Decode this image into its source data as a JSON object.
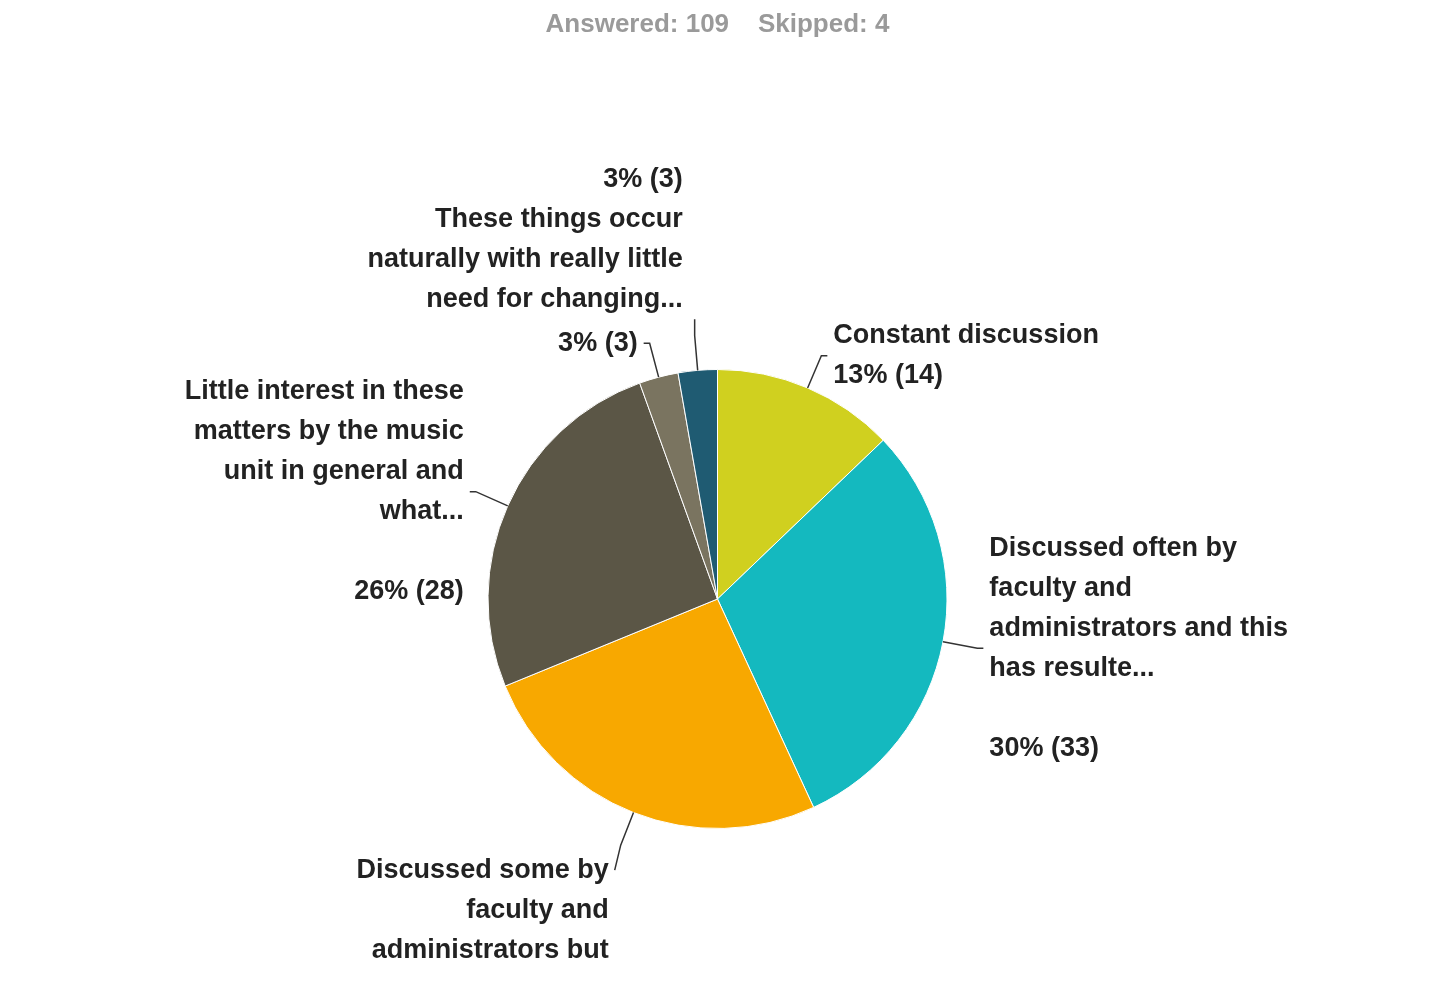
{
  "chart_data": {
    "type": "pie",
    "title": "Answered: 109    Skipped: 4",
    "categories": [
      "Constant discussion",
      "Discussed often by faculty and administrators and this has resulte...",
      "Discussed some by faculty and administrators but",
      "Little interest in these matters by the music unit in general and what...",
      null,
      "These things occur naturally with really little need for changing..."
    ],
    "values": [
      14,
      33,
      28,
      28,
      3,
      3
    ],
    "colors": [
      "#d0d01f",
      "#14b9bf",
      "#f8a800",
      "#5b5646",
      "#7a7460",
      "#1f5b72"
    ],
    "value_labels": [
      "13% (14)",
      "30% (33)",
      null,
      "26% (28)",
      "3% (3)",
      "3% (3)"
    ],
    "legend": false
  }
}
